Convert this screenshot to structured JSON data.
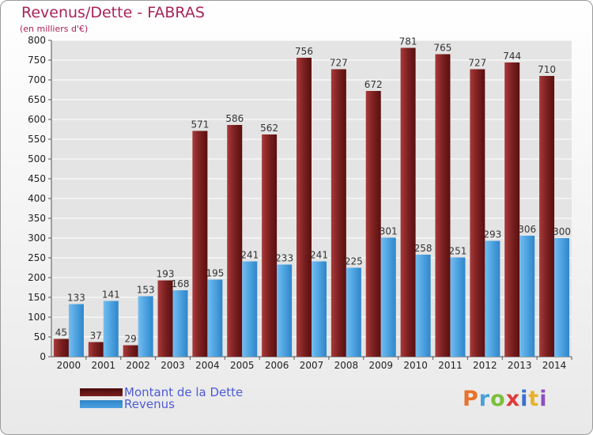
{
  "header": {
    "title": "Revenus/Dette - FABRAS",
    "subtitle": "(en milliers d'€)"
  },
  "legend": {
    "dette_label": "Montant de la Dette",
    "revenus_label": "Revenus"
  },
  "logo": {
    "text": "Proxiti",
    "letter_colors": [
      "#e8722a",
      "#49a0d8",
      "#7bbf3a",
      "#e03b3b",
      "#3a6fd1",
      "#e8b12a",
      "#8c4fc2"
    ]
  },
  "colors": {
    "dette": "#7b2020",
    "revenus": "#4da2e0",
    "grid": "#ffffff",
    "axis": "#555555"
  },
  "chart_data": {
    "type": "bar",
    "title": "Revenus/Dette - FABRAS",
    "subtitle": "(en milliers d'€)",
    "categories": [
      "2000",
      "2001",
      "2002",
      "2003",
      "2004",
      "2005",
      "2006",
      "2007",
      "2008",
      "2009",
      "2010",
      "2011",
      "2012",
      "2013",
      "2014"
    ],
    "series": [
      {
        "name": "Montant de la Dette",
        "values": [
          45,
          37,
          29,
          193,
          571,
          586,
          562,
          756,
          727,
          672,
          781,
          765,
          727,
          744,
          710
        ]
      },
      {
        "name": "Revenus",
        "values": [
          133,
          141,
          153,
          168,
          195,
          241,
          233,
          241,
          225,
          301,
          258,
          251,
          293,
          306,
          300
        ]
      }
    ],
    "yticks": [
      0,
      50,
      100,
      150,
      200,
      250,
      300,
      350,
      400,
      450,
      500,
      550,
      600,
      650,
      700,
      750,
      800
    ],
    "ylim": [
      0,
      800
    ],
    "grid": true,
    "legend_position": "bottom-left"
  }
}
